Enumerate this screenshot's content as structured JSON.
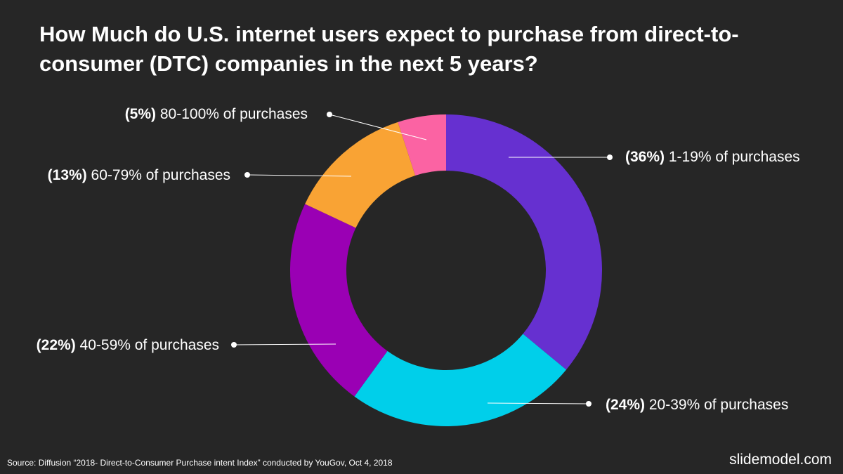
{
  "header": {
    "title": "How Much do U.S. internet users expect to purchase from direct-to-consumer (DTC) companies in the next 5 years?"
  },
  "footer": {
    "source": "Source: Diffusion “2018- Direct-to-Consumer Purchase intent Index” conducted by YouGov, Oct 4, 2018",
    "brand": "slidemodel.com"
  },
  "chart_data": {
    "type": "pie",
    "style": "donut",
    "legend": "none",
    "grid": false,
    "categories": [
      "1-19% of purchases",
      "20-39% of purchases",
      "40-59% of purchases",
      "60-79% of purchases",
      "80-100% of purchases"
    ],
    "values": [
      36,
      24,
      22,
      13,
      5
    ],
    "value_labels": [
      "(36%)",
      "(24%)",
      "(22%)",
      "(13%)",
      "(5%)"
    ],
    "colors": [
      "#6630d0",
      "#00cfea",
      "#9a00b4",
      "#f9a334",
      "#fb63a3"
    ]
  }
}
